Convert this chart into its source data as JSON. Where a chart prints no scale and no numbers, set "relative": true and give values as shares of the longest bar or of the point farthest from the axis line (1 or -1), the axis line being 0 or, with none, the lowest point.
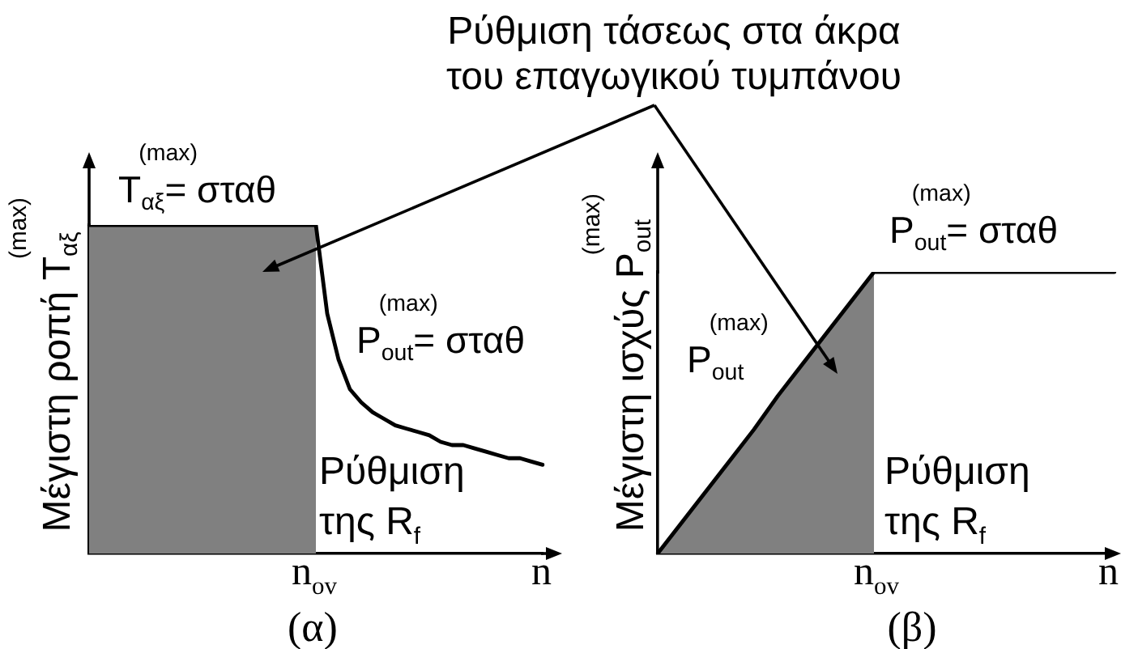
{
  "chart_data": [
    {
      "type": "line",
      "title": "(α)",
      "xlabel": "n",
      "ylabel": "Μέγιστη ροπή T$_{αξ}$$^{(max)}$",
      "relative": true,
      "categories": [
        null,
        null,
        null,
        null,
        null,
        null,
        null,
        null,
        null,
        null,
        null,
        null,
        null,
        null,
        null,
        null,
        null,
        null,
        null,
        null,
        null,
        null,
        null,
        null,
        null,
        null,
        null,
        null,
        null,
        null,
        null,
        null,
        null,
        null,
        null,
        null,
        null,
        null,
        null,
        null,
        null
      ],
      "series": [
        {
          "type": "area",
          "color": "#808080",
          "values": [
            1,
            1,
            1,
            1,
            1,
            1,
            1,
            1,
            1,
            1,
            1,
            1,
            1,
            1,
            1,
            1,
            1,
            1,
            1,
            1,
            1,
            null,
            null,
            null,
            null,
            null,
            null,
            null,
            null,
            null,
            null,
            null,
            null,
            null,
            null,
            null,
            null,
            null,
            null,
            null,
            null
          ]
        },
        {
          "type": "line",
          "color": "#000000",
          "values": [
            1,
            1,
            1,
            1,
            1,
            1,
            1,
            1,
            1,
            1,
            1,
            1,
            1,
            1,
            1,
            1,
            1,
            1,
            1,
            1,
            1,
            0.73,
            0.59,
            0.5,
            0.46,
            0.43,
            0.41,
            0.39,
            0.38,
            0.37,
            0.36,
            0.34,
            0.33,
            0.33,
            0.32,
            0.31,
            0.3,
            0.29,
            0.29,
            0.28,
            0.27
          ]
        }
      ],
      "annotations": [
        "Ρύθμιση τάσεως στα άκρα του επαγωγικού τυμπάνου",
        "T$_{αξ}$$^{(max)}$= σταθ",
        "P$_{out}$$^{(max)}$= σταθ",
        "Ρύθμιση της R$_{f}$",
        "n$_{ov}$"
      ]
    },
    {
      "type": "line",
      "title": "(β)",
      "xlabel": "n",
      "ylabel": "Μέγιστη ισχύς P$_{out}$$^{(max)}$",
      "relative": true,
      "categories": [
        null,
        null,
        null,
        null,
        null,
        null,
        null,
        null,
        null,
        null,
        null,
        null,
        null,
        null,
        null,
        null,
        null,
        null,
        null,
        null
      ],
      "series": [
        {
          "type": "area",
          "color": "#808080",
          "values": [
            0,
            0.11,
            0.22,
            0.33,
            0.44,
            0.56,
            0.67,
            0.78,
            0.89,
            1,
            null,
            null,
            null,
            null,
            null,
            null,
            null,
            null,
            null,
            null
          ]
        },
        {
          "type": "line",
          "color": "#000000",
          "values": [
            0,
            0.11,
            0.22,
            0.33,
            0.44,
            0.56,
            0.67,
            0.78,
            0.89,
            1,
            1,
            1,
            1,
            1,
            1,
            1,
            1,
            1,
            1,
            1
          ]
        }
      ],
      "annotations": [
        "P$_{out}$$^{(max)}$= σταθ",
        "P$_{out}$$^{(max)}$",
        "Ρύθμιση της R$_{f}$",
        "n$_{ov}$"
      ]
    }
  ]
}
